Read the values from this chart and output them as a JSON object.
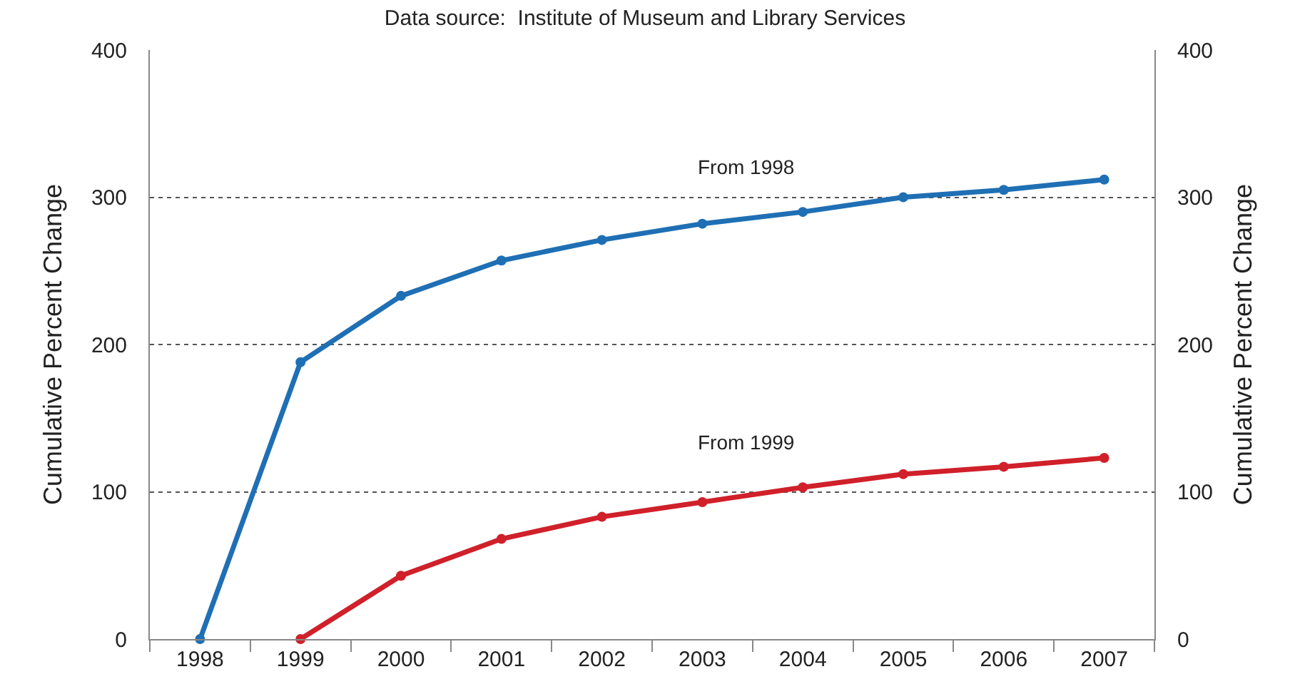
{
  "chart_data": {
    "type": "line",
    "title": "Data source:  Institute of Museum and Library Services",
    "categories": [
      "1998",
      "1999",
      "2000",
      "2001",
      "2002",
      "2003",
      "2004",
      "2005",
      "2006",
      "2007"
    ],
    "series": [
      {
        "color": "#1f6fb4",
        "values": [
          0,
          188,
          233,
          257,
          271,
          282,
          290,
          300,
          305,
          312
        ]
      },
      {
        "color": "#d0202a",
        "values": [
          null,
          0,
          43,
          68,
          83,
          93,
          103,
          112,
          117,
          123
        ]
      }
    ],
    "annotations": [
      "From 1998",
      "From 1999"
    ],
    "ylabel": "Cumulative Percent Change",
    "y2label": "Cumulative Percent Change",
    "ylim": [
      0,
      400
    ],
    "yticks": [
      0,
      100,
      200,
      300,
      400
    ],
    "y2lim": [
      0,
      400
    ],
    "y2ticks": [
      0,
      100,
      200,
      300,
      400
    ],
    "grid": "y",
    "marker": "circle",
    "line_style": "solid",
    "legend": false
  }
}
